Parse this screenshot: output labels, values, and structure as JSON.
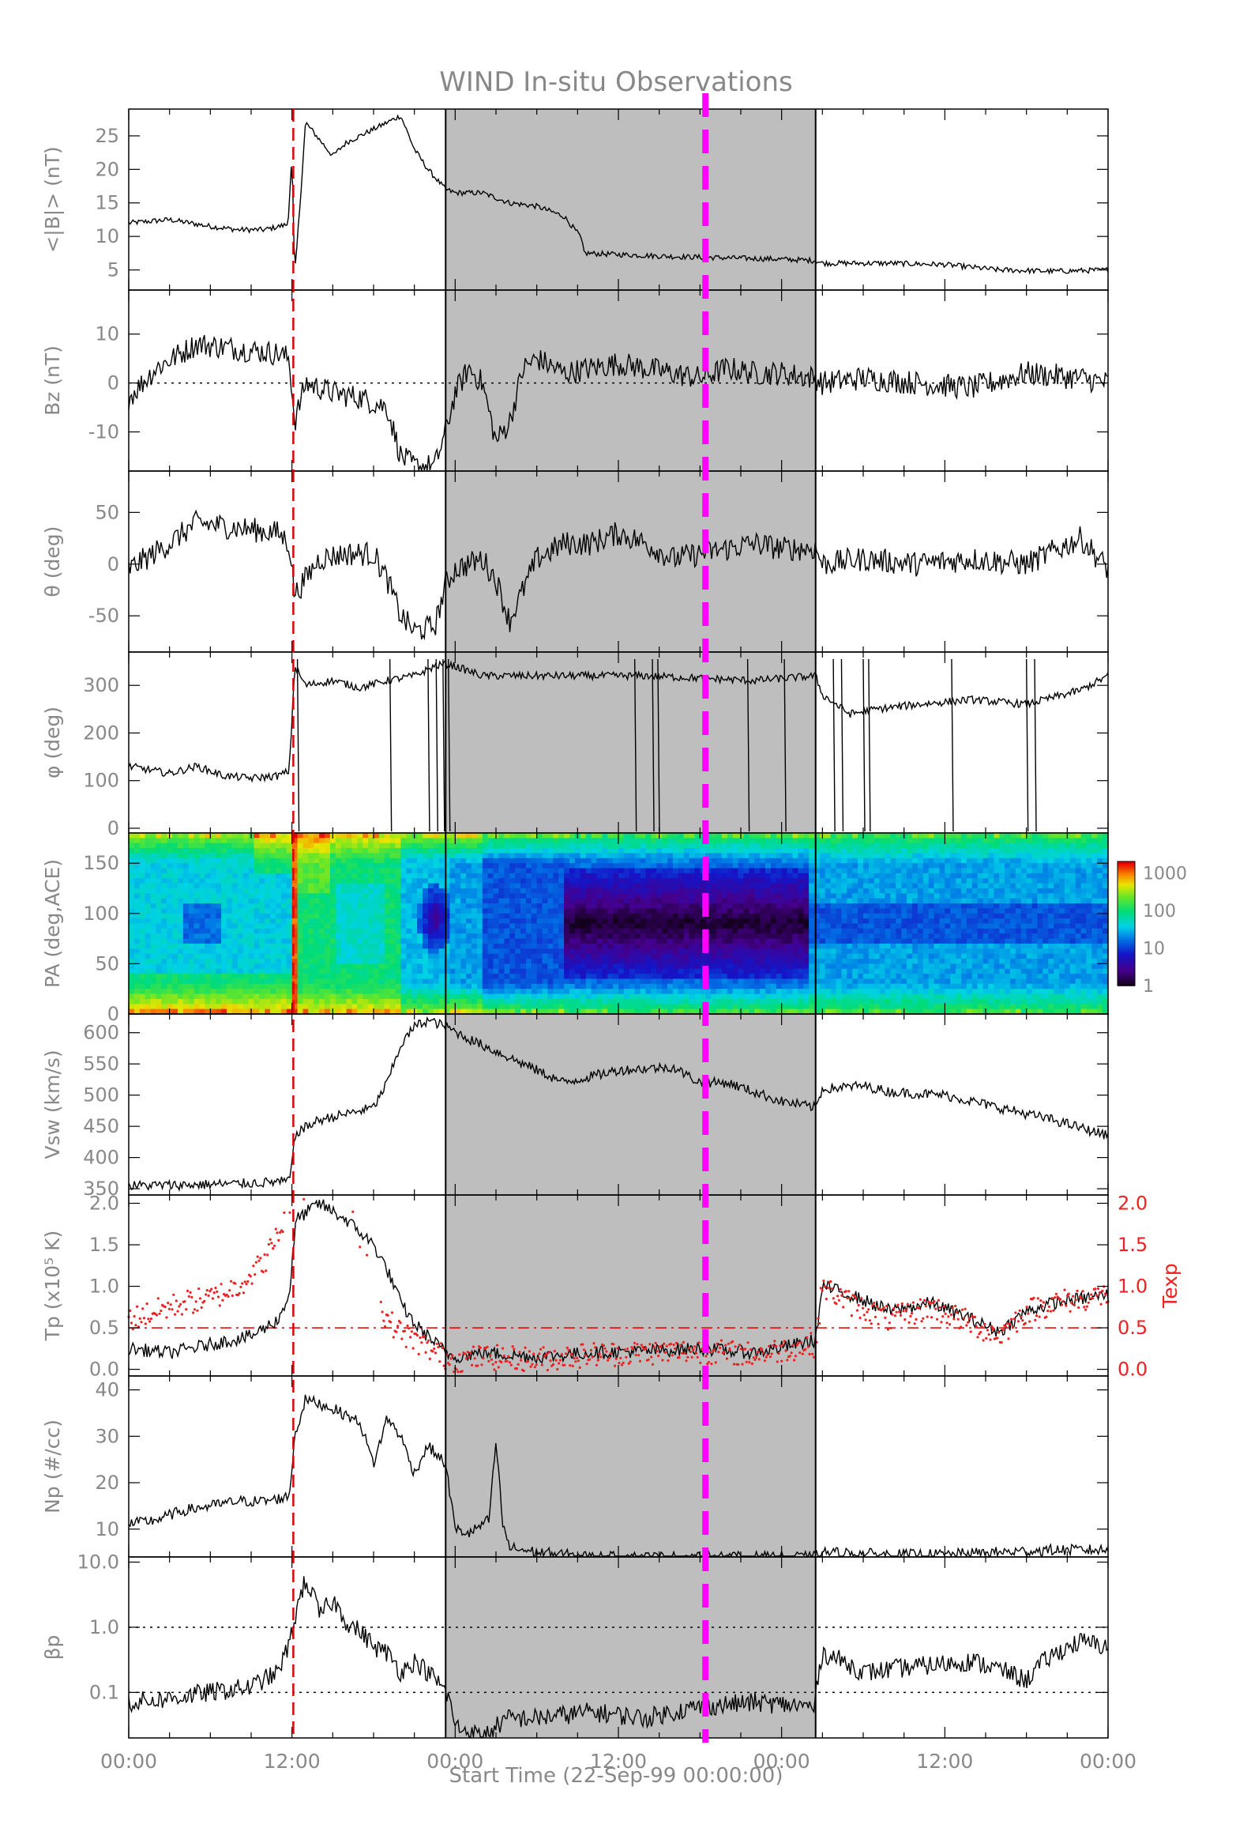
{
  "chart_data": {
    "type": "line",
    "title": "WIND In-situ Observations",
    "xlabel": "Start Time (22-Sep-99 00:00:00)",
    "x_unit": "hours since start",
    "xlim": [
      0,
      72
    ],
    "x_ticks": [
      {
        "value": 0,
        "label": "00:00"
      },
      {
        "value": 12,
        "label": "12:00"
      },
      {
        "value": 24,
        "label": "00:00"
      },
      {
        "value": 36,
        "label": "12:00"
      },
      {
        "value": 48,
        "label": "00:00"
      },
      {
        "value": 60,
        "label": "12:00"
      },
      {
        "value": 72,
        "label": "00:00"
      }
    ],
    "shaded_interval": [
      23.3,
      50.5
    ],
    "shock_time": 12.1,
    "marker_time": 42.4,
    "colors": {
      "trace": "#000000",
      "shock_line": "#dd0000",
      "marker_line": "#ff00ff",
      "shading": "#bebebe",
      "texp": "#ee2222",
      "axis_text": "#888888"
    },
    "panels": [
      {
        "name": "B magnitude",
        "ylabel": "<|B|> (nT)",
        "ylim": [
          2,
          29
        ],
        "yticks": [
          5,
          10,
          15,
          20,
          25
        ],
        "series": [
          {
            "color": "#000000",
            "jitter": 0.4,
            "x": [
              0,
              3,
              6,
              8,
              10,
              11.7,
              12.0,
              12.2,
              12.6,
              13,
              15,
              16,
              18,
              20,
              21,
              22,
              23.3,
              24,
              26,
              28,
              30,
              32,
              33.2,
              33.5,
              36,
              40,
              44,
              48,
              50.5,
              51,
              56,
              60,
              64,
              68,
              72
            ],
            "y": [
              12,
              12.5,
              11.5,
              11,
              11,
              11.8,
              22,
              4,
              15,
              27,
              22,
              24,
              26,
              28,
              23,
              20,
              17,
              16.5,
              16.5,
              15,
              14.5,
              13,
              10,
              7.5,
              7.3,
              7,
              6.8,
              6.6,
              6.4,
              6,
              6,
              5.8,
              5,
              4.8,
              5
            ]
          }
        ]
      },
      {
        "name": "Bz",
        "ylabel": "Bz (nT)",
        "ylim": [
          -18,
          19
        ],
        "yticks": [
          -10,
          0,
          10
        ],
        "zero_line": 0,
        "series": [
          {
            "color": "#000000",
            "jitter": 2.5,
            "x": [
              0,
              2,
              5,
              8,
              11,
              11.8,
              12.2,
              13,
              15,
              17,
              19,
              20,
              21,
              22.5,
              23.3,
              24,
              25,
              26,
              27,
              28,
              29,
              30,
              32,
              34,
              36,
              38,
              40,
              42,
              44,
              46,
              48,
              50.5,
              51,
              54,
              58,
              62,
              66,
              70,
              72
            ],
            "y": [
              -3,
              3,
              8,
              7,
              6,
              5,
              -8,
              0,
              -2,
              -3,
              -5,
              -15,
              -17,
              -17,
              -10,
              -2,
              3,
              0,
              -12,
              -8,
              3,
              5,
              2,
              3,
              4,
              3,
              2,
              1,
              3,
              2,
              2,
              1,
              0,
              1,
              0,
              -1,
              2,
              1,
              0
            ]
          }
        ]
      },
      {
        "name": "Bz latitude",
        "ylabel": "θ (deg)",
        "ylim": [
          -85,
          90
        ],
        "yticks": [
          -50,
          0,
          50
        ],
        "series": [
          {
            "color": "#000000",
            "jitter": 12,
            "x": [
              0,
              3,
              5,
              8,
              11,
              11.8,
              12.2,
              14,
              16,
              18,
              19,
              20,
              21,
              22.5,
              23.3,
              24,
              26,
              27,
              28,
              30,
              32,
              34,
              36,
              38,
              40,
              42,
              44,
              46,
              48,
              50.5,
              51,
              54,
              58,
              62,
              66,
              70,
              72
            ],
            "y": [
              -5,
              20,
              40,
              35,
              30,
              20,
              -30,
              5,
              10,
              10,
              -15,
              -50,
              -65,
              -60,
              -20,
              -5,
              5,
              -15,
              -55,
              5,
              20,
              20,
              30,
              20,
              5,
              10,
              15,
              20,
              15,
              15,
              0,
              5,
              0,
              5,
              0,
              25,
              -5
            ]
          }
        ]
      },
      {
        "name": "B longitude",
        "ylabel": "φ (deg)",
        "ylim": [
          -10,
          370
        ],
        "yticks": [
          0,
          100,
          200,
          300
        ],
        "series": [
          {
            "color": "#000000",
            "jitter": 8,
            "x": [
              0,
              3,
              5,
              7,
              9,
              11,
              11.8,
              12.2,
              13,
              15,
              17,
              19,
              21,
              22.5,
              23.3,
              24,
              26,
              28,
              30,
              34,
              38,
              42,
              46,
              50.5,
              51,
              53,
              55,
              58,
              62,
              66,
              70,
              72
            ],
            "y": [
              130,
              115,
              130,
              110,
              105,
              110,
              120,
              340,
              300,
              310,
              295,
              310,
              320,
              340,
              345,
              340,
              320,
              320,
              320,
              320,
              320,
              315,
              310,
              320,
              280,
              240,
              250,
              260,
              270,
              260,
              290,
              320
            ]
          }
        ],
        "spikes": [
          12.4,
          19.2,
          22.0,
          22.6,
          23.1,
          23.5,
          37.2,
          38.5,
          38.9,
          45.5,
          48.2,
          51.8,
          52.4,
          54.0,
          54.4,
          60.5,
          66.0,
          66.6
        ]
      },
      {
        "name": "pitch angle",
        "ylabel": "PA (deg,ACE)",
        "ylim": [
          0,
          180
        ],
        "yticks": [
          0,
          50,
          100,
          150
        ],
        "type": "heatmap",
        "colorbar": {
          "scale": "log",
          "range": [
            1,
            2000
          ],
          "ticks": [
            {
              "value": 1,
              "label": "1"
            },
            {
              "value": 10,
              "label": "10"
            },
            {
              "value": 100,
              "label": "100"
            },
            {
              "value": 1000,
              "label": "1000"
            }
          ]
        }
      },
      {
        "name": "solar wind speed",
        "ylabel": "Vsw (km/s)",
        "ylim": [
          340,
          630
        ],
        "yticks": [
          350,
          400,
          450,
          500,
          550,
          600
        ],
        "series": [
          {
            "color": "#000000",
            "jitter": 8,
            "x": [
              0,
              4,
              8,
              11.8,
              12.3,
              14,
              16,
              18,
              19,
              20,
              21,
              22,
              23.3,
              25,
              28,
              32,
              36,
              40,
              42,
              44,
              48,
              50.5,
              51,
              54,
              56,
              60,
              64,
              68,
              72
            ],
            "y": [
              355,
              356,
              358,
              362,
              440,
              460,
              470,
              480,
              520,
              580,
              610,
              620,
              610,
              590,
              560,
              520,
              540,
              545,
              520,
              520,
              490,
              480,
              510,
              515,
              505,
              500,
              480,
              460,
              435
            ]
          }
        ]
      },
      {
        "name": "proton temperature",
        "ylabel": "Tp (x10⁵ K)",
        "ylim": [
          -0.08,
          2.1
        ],
        "yticks": [
          0,
          0.5,
          1.0,
          1.5,
          2.0
        ],
        "ytick_labels": [
          "0.0",
          "0.5",
          "1.0",
          "1.5",
          "2.0"
        ],
        "y2label": "Texp",
        "y2ticks": [
          0,
          0.5,
          1.0,
          1.5,
          2.0
        ],
        "y2tick_labels": [
          "0.0",
          "0.5",
          "1.0",
          "1.5",
          "2.0"
        ],
        "ref_line": 0.5,
        "series": [
          {
            "color": "#000000",
            "jitter": 0.08,
            "x": [
              0,
              3,
              6,
              9,
              11,
              11.8,
              12.3,
              14,
              16,
              18,
              19,
              20,
              21,
              22,
              23.3,
              24,
              26,
              30,
              34,
              38,
              42,
              46,
              50.5,
              51,
              53,
              56,
              59,
              62,
              64,
              66,
              68,
              70,
              72
            ],
            "y": [
              0.25,
              0.2,
              0.3,
              0.4,
              0.6,
              0.9,
              1.8,
              2.0,
              1.8,
              1.5,
              1.2,
              0.8,
              0.55,
              0.4,
              0.2,
              0.15,
              0.2,
              0.15,
              0.2,
              0.22,
              0.25,
              0.2,
              0.35,
              1.0,
              0.9,
              0.7,
              0.8,
              0.6,
              0.45,
              0.7,
              0.8,
              0.85,
              0.9
            ]
          },
          {
            "color": "#ee2222",
            "style": "dots",
            "jitter": 0.15,
            "x": [
              0,
              2,
              4,
              6,
              8,
              10,
              11.5,
              12.5,
              14,
              16,
              18,
              19,
              20,
              21,
              22,
              23.3,
              24,
              26,
              30,
              34,
              38,
              42,
              46,
              50.5,
              51,
              53,
              56,
              59,
              62,
              64,
              66,
              68,
              70,
              72
            ],
            "y": [
              0.6,
              0.7,
              0.8,
              0.85,
              1.0,
              1.3,
              1.8,
              2.0,
              2.0,
              2.0,
              1.0,
              0.6,
              0.45,
              0.35,
              0.25,
              0.15,
              0.1,
              0.15,
              0.12,
              0.18,
              0.2,
              0.22,
              0.18,
              0.3,
              1.0,
              0.8,
              0.6,
              0.75,
              0.55,
              0.4,
              0.7,
              0.8,
              0.85,
              0.9
            ]
          }
        ]
      },
      {
        "name": "proton density",
        "ylabel": "Np (#/cc)",
        "ylim": [
          4,
          43
        ],
        "yticks": [
          10,
          20,
          30,
          40
        ],
        "series": [
          {
            "color": "#000000",
            "jitter": 1.2,
            "x": [
              0,
              2,
              4,
              6,
              8,
              10,
              11.8,
              12.2,
              13,
              15,
              17,
              18,
              19,
              20,
              21,
              22,
              23.3,
              24,
              25,
              26.5,
              27,
              27.5,
              28,
              30,
              32,
              34,
              36,
              40,
              44,
              48,
              50.5,
              51,
              56,
              60,
              64,
              68,
              72
            ],
            "y": [
              11,
              12,
              14,
              15,
              16,
              16,
              17,
              30,
              38,
              36,
              33,
              24,
              34,
              30,
              22,
              28,
              24,
              10,
              9,
              12,
              29,
              11,
              6,
              5,
              4.5,
              4,
              4,
              4,
              4,
              4,
              4,
              5,
              4.5,
              4.5,
              5,
              5.5,
              5.5
            ]
          }
        ]
      },
      {
        "name": "plasma beta",
        "ylabel": "βp",
        "yscale": "log",
        "ylim": [
          0.02,
          12
        ],
        "yticks": [
          0.1,
          1.0,
          10.0
        ],
        "ytick_labels": [
          "0.1",
          "1.0",
          "10.0"
        ],
        "ref_lines": [
          0.1,
          1.0
        ],
        "series": [
          {
            "color": "#000000",
            "jitter": 0.15,
            "x": [
              0,
              3,
              6,
              9,
              11,
              11.8,
              12.3,
              13,
              14,
              15,
              16,
              18,
              19,
              20,
              21,
              22,
              23.3,
              24,
              26,
              28,
              30,
              34,
              38,
              42,
              46,
              50.5,
              51,
              54,
              58,
              62,
              66,
              70,
              72
            ],
            "y": [
              0.07,
              0.08,
              0.1,
              0.12,
              0.2,
              0.5,
              1.5,
              5,
              1.5,
              2.5,
              1.2,
              0.5,
              0.4,
              0.2,
              0.3,
              0.2,
              0.1,
              0.03,
              0.02,
              0.04,
              0.04,
              0.05,
              0.04,
              0.06,
              0.07,
              0.06,
              0.4,
              0.2,
              0.25,
              0.3,
              0.15,
              0.6,
              0.5
            ]
          }
        ]
      }
    ]
  }
}
